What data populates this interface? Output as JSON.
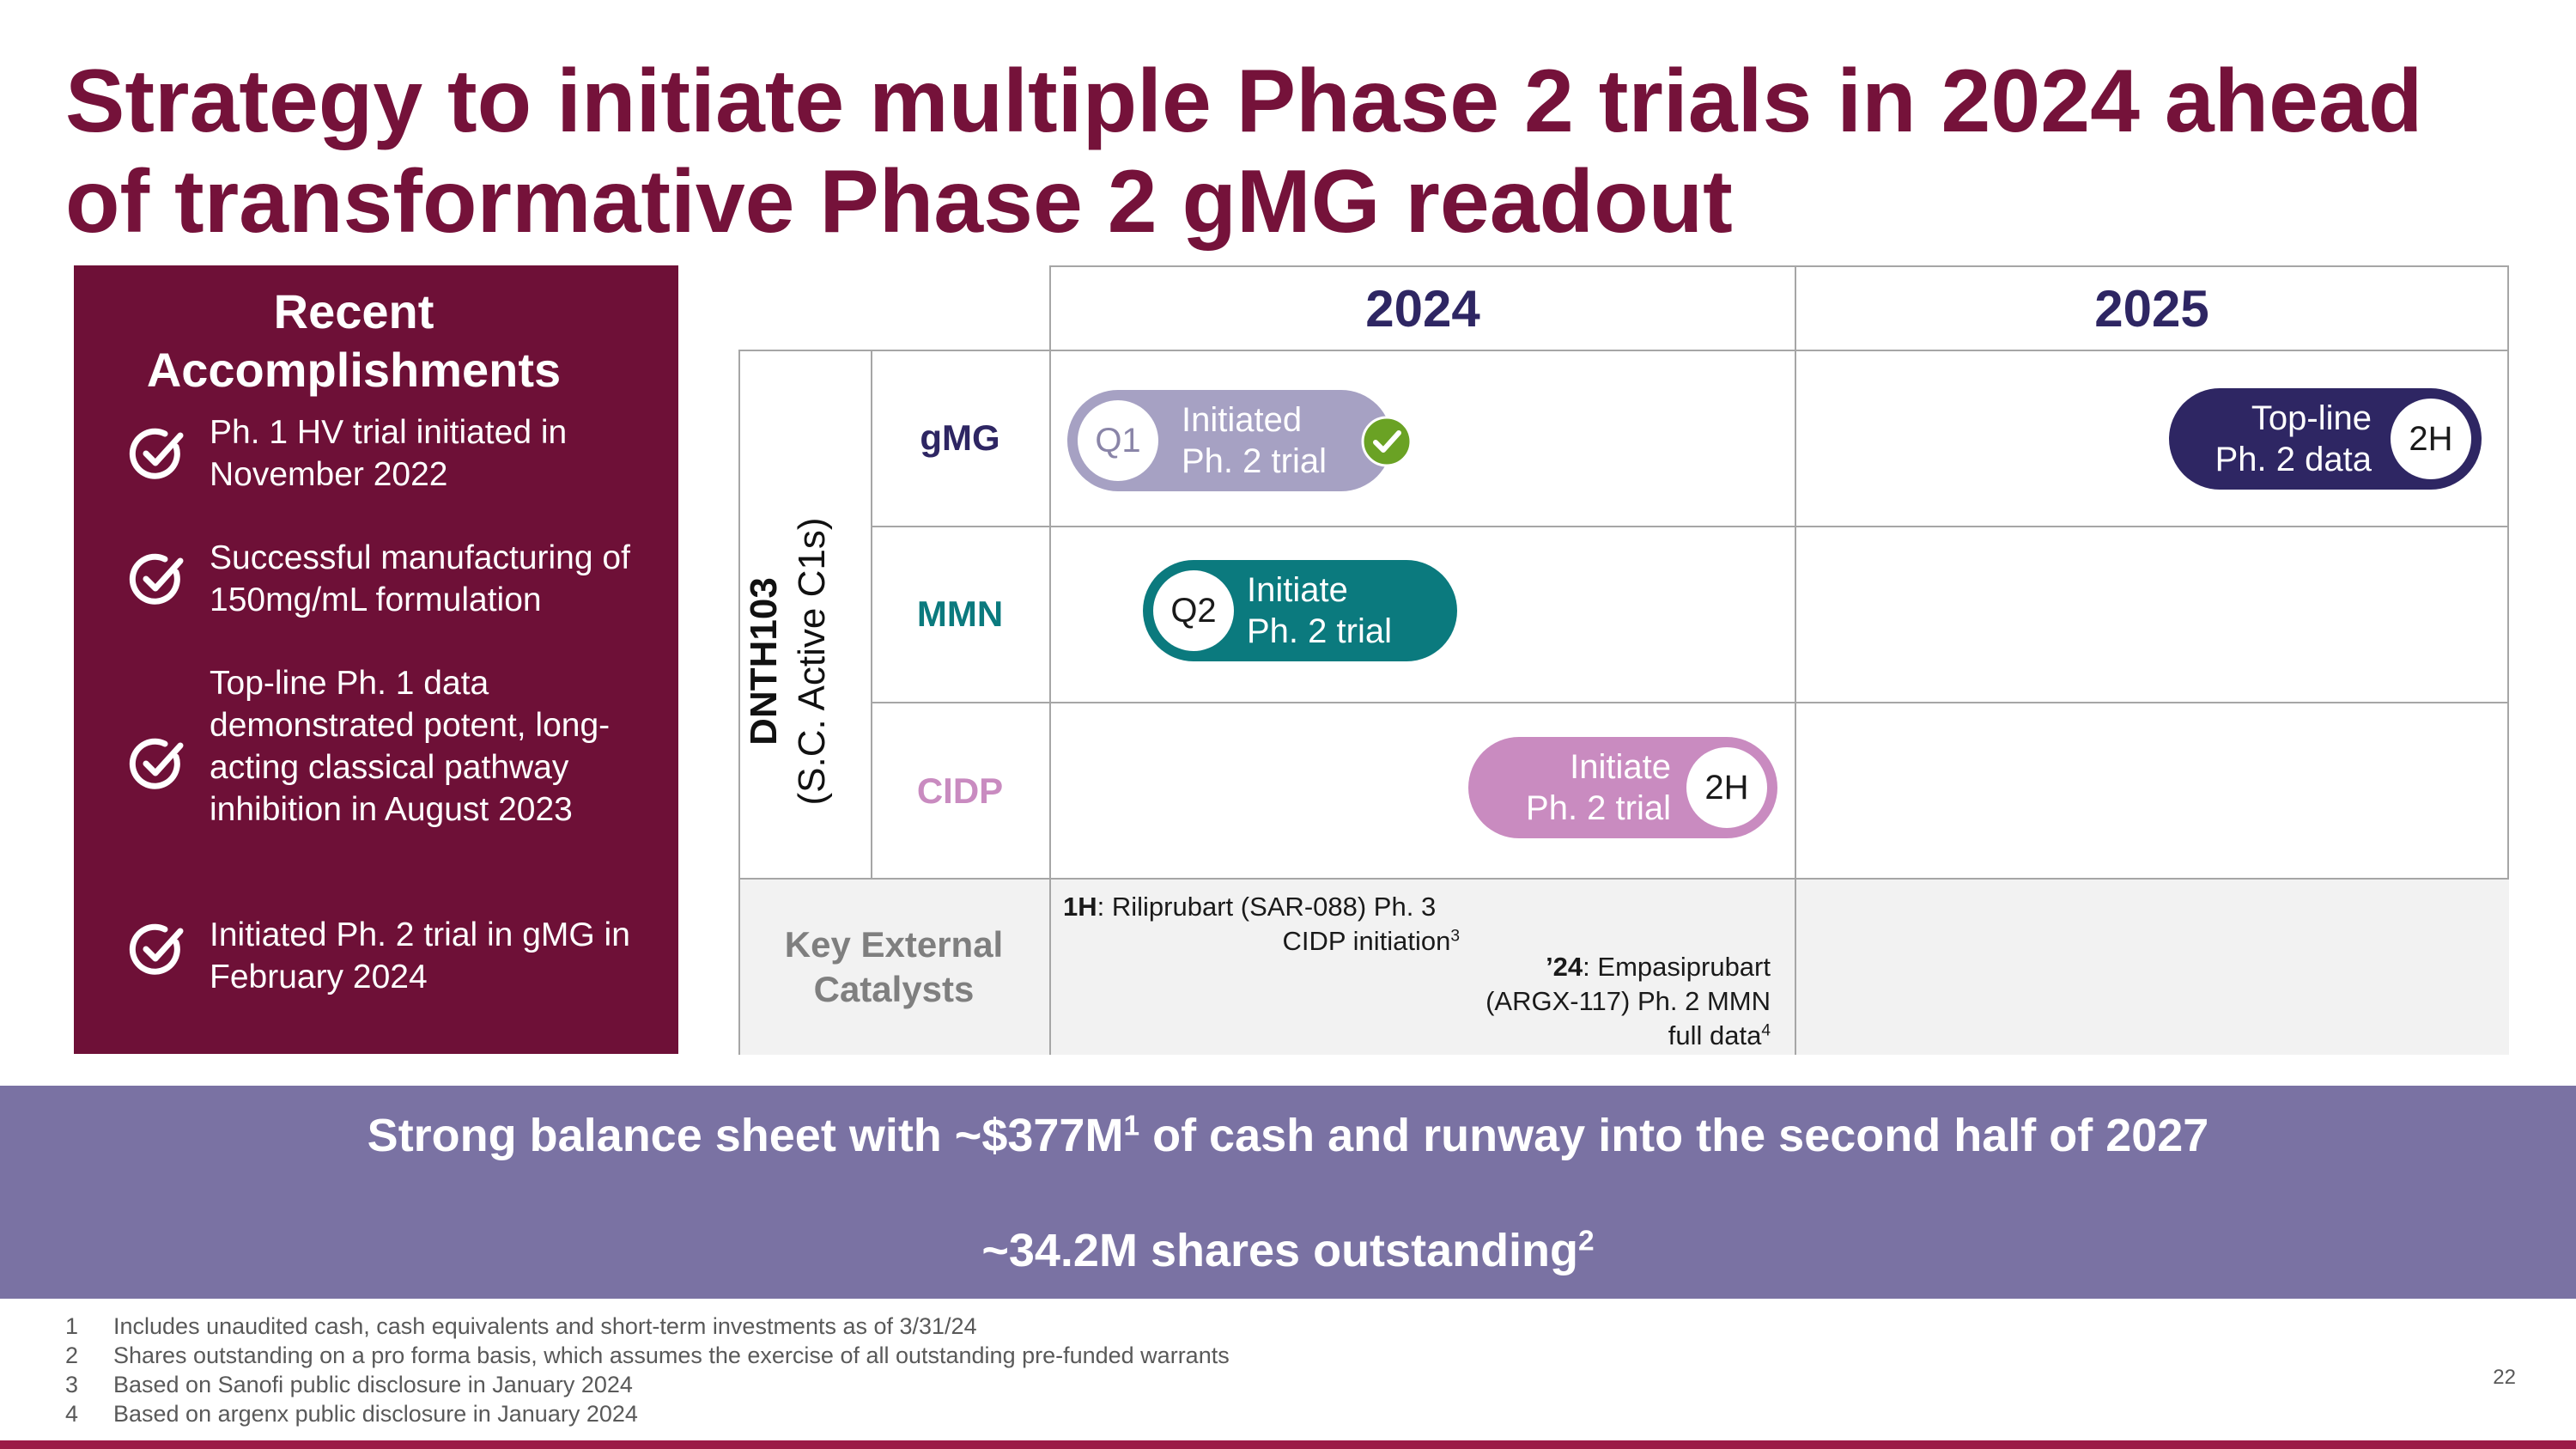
{
  "title": {
    "line1": "Strategy to initiate multiple Phase 2 trials in 2024 ahead",
    "line2": "of transformative Phase 2 gMG readout"
  },
  "accomplishments": {
    "heading_line1": "Recent",
    "heading_line2": "Accomplishments",
    "items": [
      {
        "icon": "check-circle-icon",
        "text": "Ph. 1 HV trial initiated in November 2022"
      },
      {
        "icon": "check-circle-icon",
        "text": "Successful manufacturing of 150mg/mL formulation"
      },
      {
        "icon": "check-circle-icon",
        "text": "Top-line Ph. 1 data demonstrated potent, long-acting classical pathway inhibition in August 2023"
      },
      {
        "icon": "check-circle-icon",
        "text": "Initiated Ph. 2 trial in gMG in February 2024"
      }
    ]
  },
  "timeline": {
    "years": [
      "2024",
      "2025"
    ],
    "product_line1": "DNTH103",
    "product_line2": "(S.C. Active C1s)",
    "rows": [
      {
        "label": "gMG",
        "color": "#2e2663"
      },
      {
        "label": "MMN",
        "color": "#0b7a7e"
      },
      {
        "label": "CIDP",
        "color": "#c98bc0"
      }
    ],
    "milestones": {
      "gmg_initiated": {
        "period": "Q1",
        "line1": "Initiated",
        "line2": "Ph. 2 trial",
        "color": "#a6a1c3",
        "status_icon": "check-icon"
      },
      "gmg_topline": {
        "period": "2H",
        "line1": "Top-line",
        "line2": "Ph. 2 data",
        "color": "#2e2663"
      },
      "mmn_initiate": {
        "period": "Q2",
        "line1": "Initiate",
        "line2": "Ph. 2 trial",
        "color": "#0b7a7e"
      },
      "cidp_initiate": {
        "period": "2H",
        "line1": "Initiate",
        "line2": "Ph. 2 trial",
        "color": "#c98bc0"
      }
    },
    "external": {
      "label_line1": "Key External",
      "label_line2": "Catalysts",
      "item1": {
        "prefix": "1H",
        "line1": ": Riliprubart (SAR-088) Ph. 3",
        "line2": "CIDP initiation",
        "ref": "3"
      },
      "item2": {
        "prefix": "’24",
        "line1": ": Empasiprubart",
        "line2": "(ARGX-117) Ph. 2 MMN",
        "line3": "full data",
        "ref": "4"
      }
    }
  },
  "band": {
    "line1_pre": "Strong balance sheet with ~$377M",
    "line1_ref": "1",
    "line1_post": " of cash and runway into the second half of 2027",
    "line2_pre": "~34.2M shares outstanding",
    "line2_ref": "2"
  },
  "footnotes": [
    {
      "num": "1",
      "text": "Includes unaudited cash, cash equivalents and short-term investments as of 3/31/24"
    },
    {
      "num": "2",
      "text": "Shares outstanding on a pro forma basis, which assumes the exercise of all outstanding pre-funded warrants"
    },
    {
      "num": "3",
      "text": "Based on Sanofi public disclosure in January 2024"
    },
    {
      "num": "4",
      "text": "Based on argenx public disclosure in January 2024"
    }
  ],
  "page_number": "22",
  "colors": {
    "brand": "#75123a",
    "panel": "#6e1037",
    "band": "#7a72a3",
    "check_green": "#6aa224"
  }
}
